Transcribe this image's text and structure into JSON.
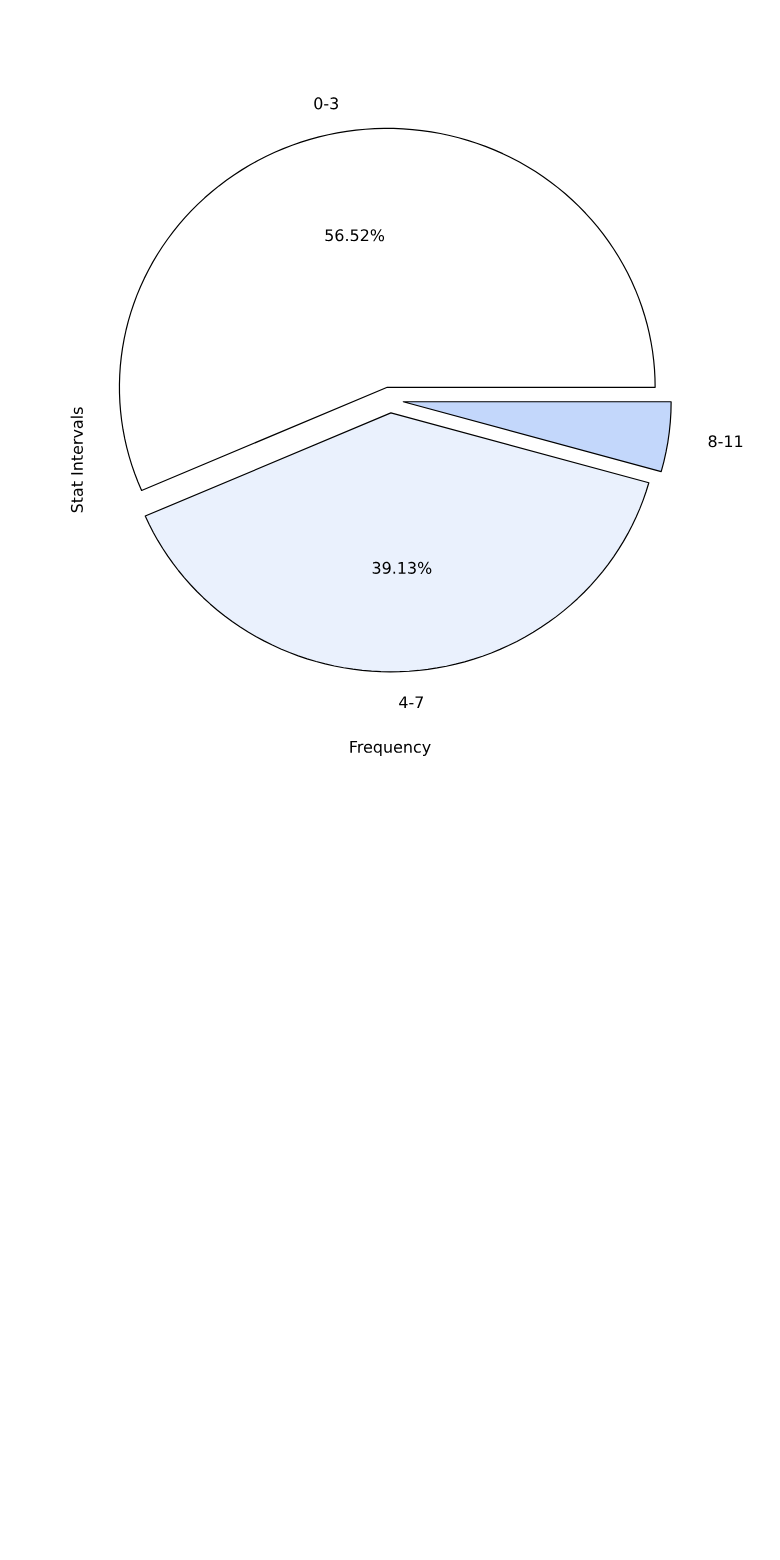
{
  "chart_data": {
    "type": "pie",
    "xlabel": "Frequency",
    "ylabel": "Stat Intervals",
    "categories": [
      "0-3",
      "4-7",
      "8-11"
    ],
    "values": [
      56.52,
      39.13,
      4.35
    ],
    "value_labels": [
      "56.52%",
      "39.13%",
      null
    ],
    "colors": [
      "#ffffff",
      "#eaf1fd",
      "#c3d7fb"
    ]
  }
}
